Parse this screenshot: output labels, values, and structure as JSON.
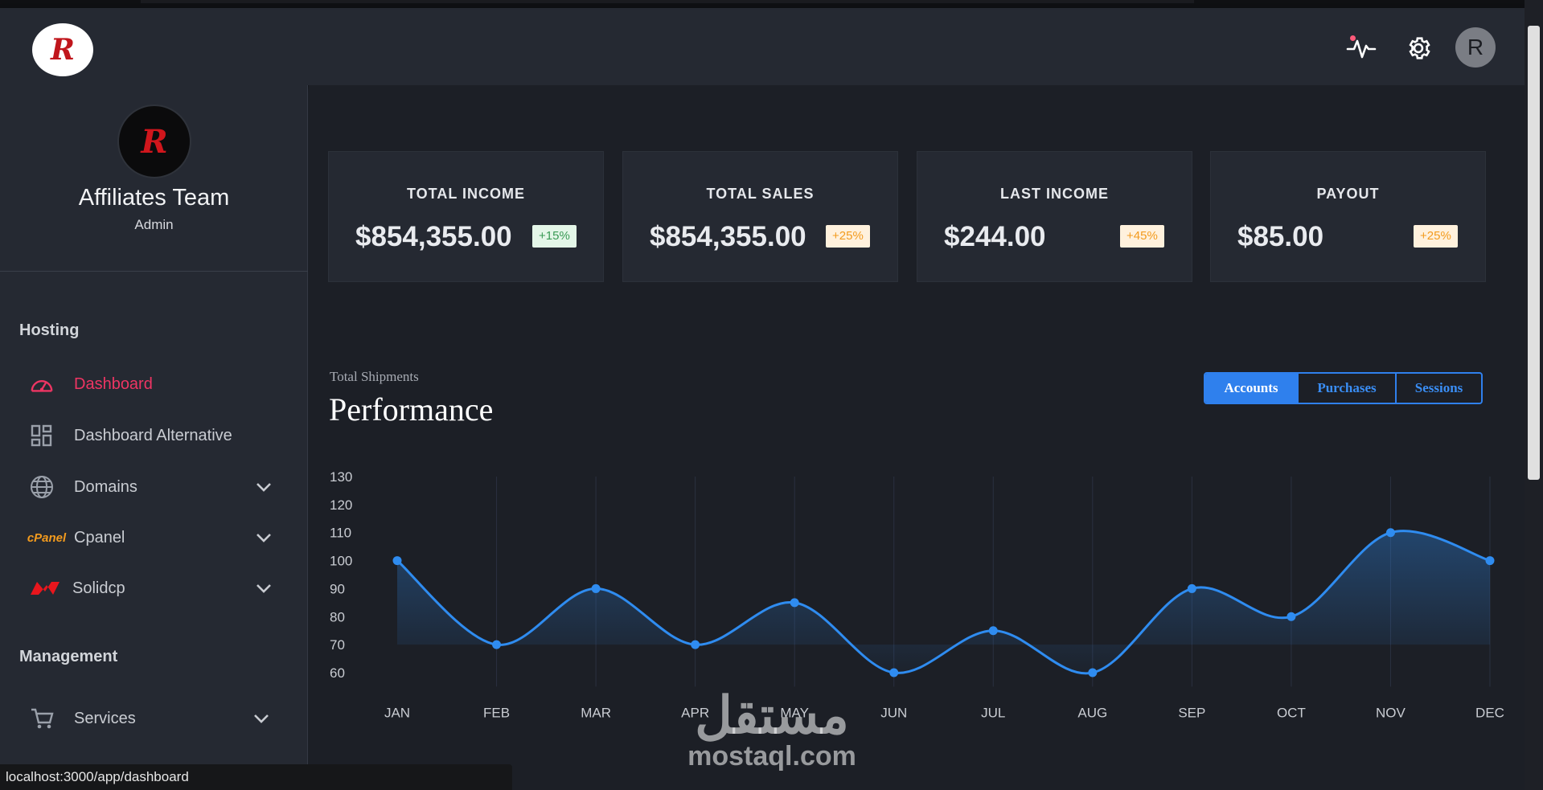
{
  "header": {
    "logo_letter": "R",
    "avatar_letter": "R",
    "icons": [
      "activity-icon",
      "gear-icon"
    ]
  },
  "sidebar": {
    "profile": {
      "logo_letter": "R",
      "name": "Affiliates Team",
      "role": "Admin"
    },
    "sections": [
      {
        "title": "Hosting"
      },
      {
        "title": "Management"
      }
    ],
    "items": [
      {
        "label": "Dashboard",
        "icon": "speedometer-icon",
        "active": true
      },
      {
        "label": "Dashboard Alternative",
        "icon": "grid-icon"
      },
      {
        "label": "Domains",
        "icon": "globe-icon",
        "expandable": true
      },
      {
        "label": "Cpanel",
        "icon": "cpanel-icon",
        "icon_text": "cPanel",
        "expandable": true
      },
      {
        "label": "Solidcp",
        "icon": "solidcp-icon",
        "expandable": true
      },
      {
        "label": "Services",
        "icon": "cart-icon",
        "expandable": true
      }
    ]
  },
  "cards": [
    {
      "title": "TOTAL INCOME",
      "value": "$854,355.00",
      "badge": "+15%",
      "badge_color": "#3a9a55"
    },
    {
      "title": "TOTAL SALES",
      "value": "$854,355.00",
      "badge": "+25%",
      "badge_color": "#f39b1e"
    },
    {
      "title": "LAST INCOME",
      "value": "$244.00",
      "badge": "+45%",
      "badge_color": "#f39b1e"
    },
    {
      "title": "PAYOUT",
      "value": "$85.00",
      "badge": "+25%",
      "badge_color": "#f39b1e"
    }
  ],
  "performance": {
    "subtitle": "Total Shipments",
    "title": "Performance",
    "tabs": [
      "Accounts",
      "Purchases",
      "Sessions"
    ],
    "active_tab": "Accounts"
  },
  "chart_data": {
    "type": "line",
    "categories": [
      "JAN",
      "FEB",
      "MAR",
      "APR",
      "MAY",
      "JUN",
      "JUL",
      "AUG",
      "SEP",
      "OCT",
      "NOV",
      "DEC"
    ],
    "series": [
      {
        "values": [
          100,
          70,
          90,
          70,
          85,
          60,
          75,
          60,
          90,
          80,
          110,
          100
        ]
      }
    ],
    "yticks": [
      60,
      70,
      80,
      90,
      100,
      110,
      120,
      130
    ],
    "ylim": [
      55,
      130
    ],
    "color": "#2f8cf0",
    "area_fill": true,
    "grid": "vertical"
  },
  "status_bar": {
    "url": "localhost:3000/app/dashboard"
  },
  "watermark": {
    "arabic": "مستقل",
    "latin": "mostaql.com"
  },
  "colors": {
    "accent": "#2f80ed",
    "active_nav": "#ee3563",
    "bg": "#1c1f26",
    "panel": "#252932"
  }
}
